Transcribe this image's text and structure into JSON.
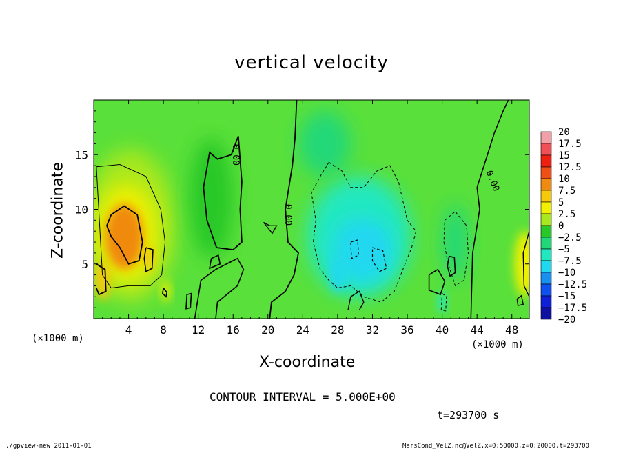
{
  "chart_data": {
    "type": "heatmap",
    "title": "vertical velocity",
    "xlabel": "X-coordinate",
    "ylabel": "Z-coordinate",
    "x_unit": "(×1000 m)",
    "xlim": [
      0,
      50
    ],
    "ylim": [
      0,
      20
    ],
    "x_ticks": [
      "4",
      "8",
      "12",
      "16",
      "20",
      "24",
      "28",
      "32",
      "36",
      "40",
      "44",
      "48"
    ],
    "y_ticks": [
      "5",
      "10",
      "15"
    ],
    "colorbar": {
      "levels": [
        "20",
        "17.5",
        "15",
        "12.5",
        "10",
        "7.5",
        "5",
        "2.5",
        "0",
        "-2.5",
        "-5",
        "-7.5",
        "-10",
        "-12.5",
        "-15",
        "-17.5",
        "-20"
      ],
      "colors": [
        "#f2a0a8",
        "#f05055",
        "#f02010",
        "#f05018",
        "#f08a10",
        "#f5c80a",
        "#f0f000",
        "#a8e81e",
        "#28c828",
        "#20d878",
        "#20e8c0",
        "#20d8f0",
        "#1890f0",
        "#1050f0",
        "#1020d8",
        "#1010a0",
        "#8010b0"
      ]
    },
    "contour_interval": "CONTOUR INTERVAL = 5.000E+00",
    "contour_labels": [
      "0.00",
      "0.00",
      "0.00"
    ],
    "time_label": "t=293700 s",
    "features": [
      {
        "kind": "updraft",
        "x": 4,
        "z": 7.5,
        "peak": 12.5
      },
      {
        "kind": "updraft",
        "x": 1,
        "z": 3.5,
        "peak": 10
      },
      {
        "kind": "updraft",
        "x": 6.5,
        "z": 5.5,
        "peak": 10
      },
      {
        "kind": "downdraft",
        "x": 31,
        "z": 6.5,
        "peak": -7.5
      },
      {
        "kind": "downdraft",
        "x": 28,
        "z": 4,
        "peak": -5
      },
      {
        "kind": "downdraft",
        "x": 40,
        "z": 2,
        "peak": -5
      }
    ]
  },
  "footer": {
    "left": "./gpview-new   2011-01-01",
    "right": "MarsCond_VelZ.nc@VelZ,x=0:50000,z=0:20000,t=293700"
  }
}
